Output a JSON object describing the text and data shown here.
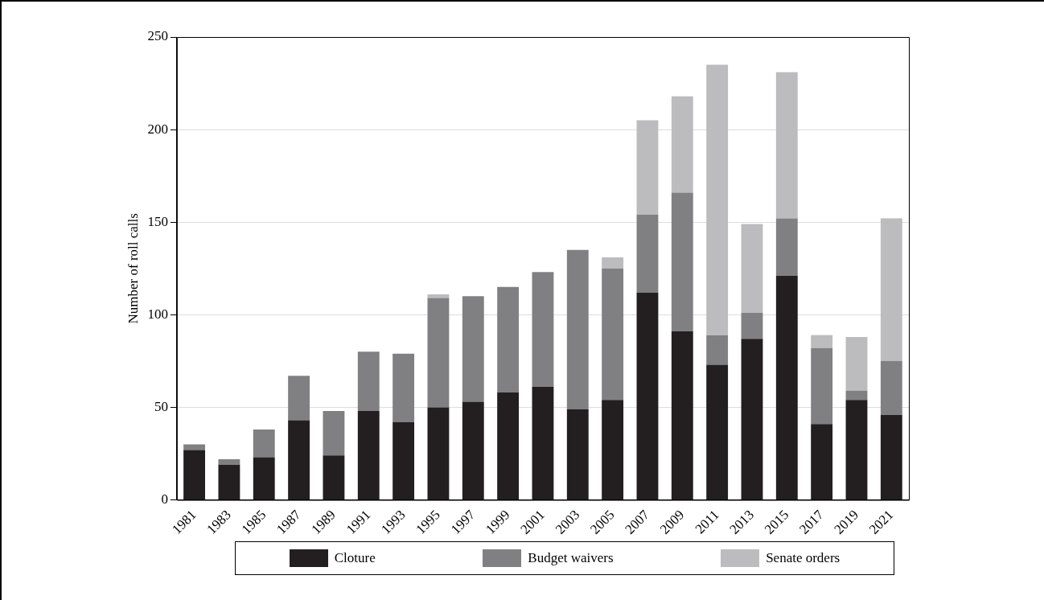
{
  "chart_data": {
    "type": "bar",
    "stacked": true,
    "ylabel": "Number of roll calls",
    "categories": [
      "1981",
      "1983",
      "1985",
      "1987",
      "1989",
      "1991",
      "1993",
      "1995",
      "1997",
      "1999",
      "2001",
      "2003",
      "2005",
      "2007",
      "2009",
      "2011",
      "2013",
      "2015",
      "2017",
      "2019",
      "2021"
    ],
    "series": [
      {
        "name": "Cloture",
        "color": "#231f20",
        "values": [
          27,
          19,
          23,
          43,
          24,
          48,
          42,
          50,
          53,
          58,
          61,
          49,
          54,
          112,
          91,
          73,
          87,
          121,
          41,
          54,
          46
        ]
      },
      {
        "name": "Budget waivers",
        "color": "#808083",
        "values": [
          3,
          3,
          15,
          24,
          24,
          32,
          37,
          59,
          57,
          57,
          62,
          86,
          71,
          42,
          75,
          16,
          14,
          31,
          41,
          5,
          29
        ]
      },
      {
        "name": "Senate orders",
        "color": "#bcbcbe",
        "values": [
          null,
          null,
          null,
          null,
          null,
          null,
          null,
          2,
          null,
          null,
          null,
          null,
          6,
          51,
          52,
          146,
          48,
          79,
          7,
          29,
          77
        ]
      }
    ],
    "ylim": [
      0,
      250
    ],
    "yticks": [
      0,
      50,
      100,
      150,
      200,
      250
    ],
    "grid": "y",
    "legend": "bottom"
  }
}
